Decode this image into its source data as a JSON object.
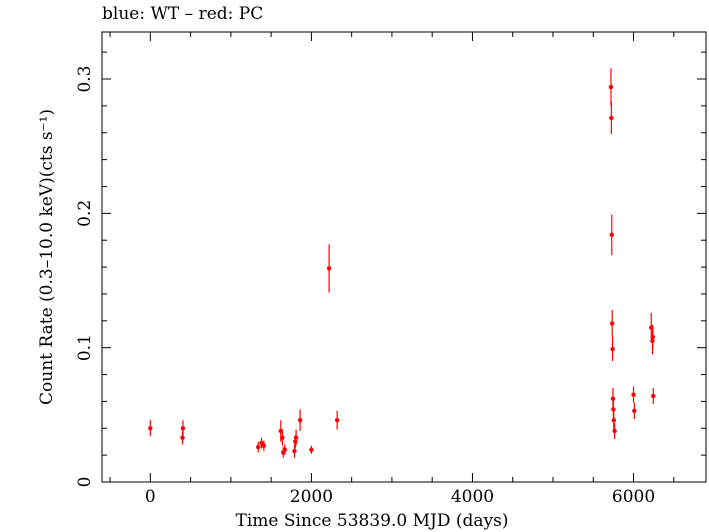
{
  "chart_data": {
    "type": "scatter",
    "title": "blue: WT – red: PC",
    "xlabel": "Time Since 53839.0 MJD (days)",
    "ylabel": "Count Rate (0.3–10.0 keV)(cts s⁻¹)",
    "xlim": [
      -600,
      6900
    ],
    "ylim": [
      0,
      0.335
    ],
    "x_ticks": [
      0,
      2000,
      4000,
      6000
    ],
    "x_tick_labels": [
      "0",
      "2000",
      "4000",
      "6000"
    ],
    "y_ticks": [
      0,
      0.1,
      0.2,
      0.3
    ],
    "y_tick_labels": [
      "0",
      "0.1",
      "0.2",
      "0.3"
    ],
    "grid": false,
    "series": [
      {
        "color": "#ff0000",
        "points": [
          {
            "x": 0,
            "y": 0.04,
            "err": 0.006
          },
          {
            "x": 400,
            "y": 0.033,
            "err": 0.005
          },
          {
            "x": 405,
            "y": 0.04,
            "err": 0.006
          },
          {
            "x": 1340,
            "y": 0.026,
            "err": 0.004
          },
          {
            "x": 1380,
            "y": 0.029,
            "err": 0.004
          },
          {
            "x": 1410,
            "y": 0.027,
            "err": 0.004
          },
          {
            "x": 1620,
            "y": 0.038,
            "err": 0.008
          },
          {
            "x": 1640,
            "y": 0.033,
            "err": 0.006
          },
          {
            "x": 1650,
            "y": 0.022,
            "err": 0.004
          },
          {
            "x": 1670,
            "y": 0.024,
            "err": 0.004
          },
          {
            "x": 1790,
            "y": 0.023,
            "err": 0.005
          },
          {
            "x": 1800,
            "y": 0.03,
            "err": 0.005
          },
          {
            "x": 1810,
            "y": 0.033,
            "err": 0.006
          },
          {
            "x": 1860,
            "y": 0.046,
            "err": 0.008
          },
          {
            "x": 2000,
            "y": 0.024,
            "err": 0.003
          },
          {
            "x": 2220,
            "y": 0.159,
            "err": 0.018
          },
          {
            "x": 2320,
            "y": 0.046,
            "err": 0.007
          },
          {
            "x": 5720,
            "y": 0.294,
            "err": 0.014
          },
          {
            "x": 5725,
            "y": 0.271,
            "err": 0.012
          },
          {
            "x": 5730,
            "y": 0.184,
            "err": 0.015
          },
          {
            "x": 5735,
            "y": 0.118,
            "err": 0.01
          },
          {
            "x": 5740,
            "y": 0.099,
            "err": 0.009
          },
          {
            "x": 5745,
            "y": 0.062,
            "err": 0.008
          },
          {
            "x": 5750,
            "y": 0.054,
            "err": 0.007
          },
          {
            "x": 5755,
            "y": 0.046,
            "err": 0.007
          },
          {
            "x": 5765,
            "y": 0.038,
            "err": 0.006
          },
          {
            "x": 6000,
            "y": 0.065,
            "err": 0.006
          },
          {
            "x": 6010,
            "y": 0.053,
            "err": 0.006
          },
          {
            "x": 6220,
            "y": 0.115,
            "err": 0.011
          },
          {
            "x": 6235,
            "y": 0.105,
            "err": 0.01
          },
          {
            "x": 6240,
            "y": 0.108,
            "err": 0.009
          },
          {
            "x": 6245,
            "y": 0.064,
            "err": 0.006
          }
        ]
      }
    ]
  }
}
